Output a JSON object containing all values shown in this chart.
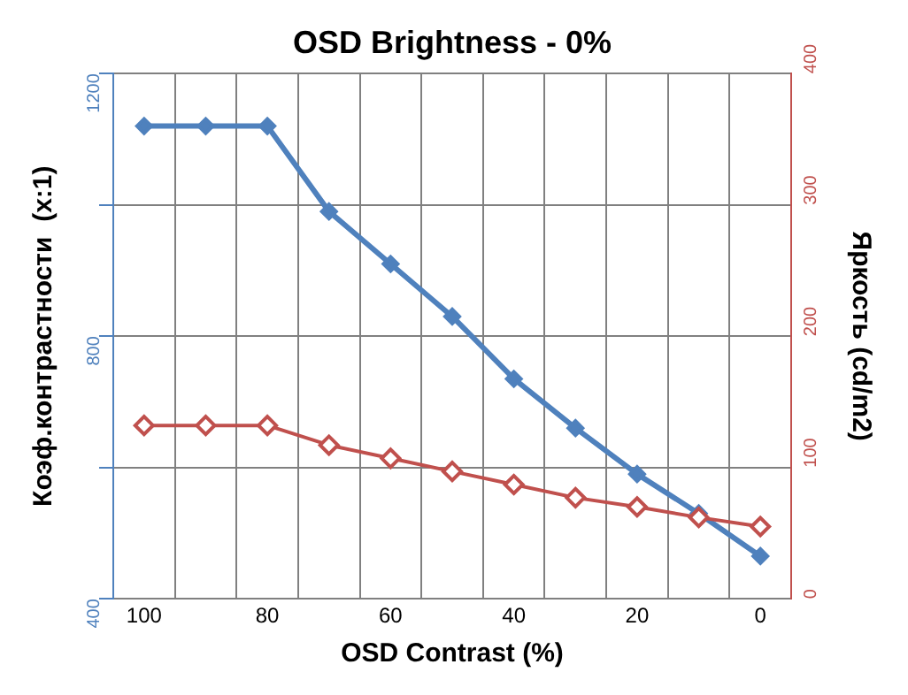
{
  "chart_data": {
    "type": "line",
    "title": "OSD Brightness - 0%",
    "xlabel": "OSD Contrast (%)",
    "ylabel": "Коэф.контрастности  (x:1)",
    "y2label": "Яркость (cd/m2)",
    "categories": [
      "100",
      null,
      "80",
      null,
      "60",
      null,
      "40",
      null,
      "20",
      null,
      "0"
    ],
    "series": [
      {
        "color": "#4f81bd",
        "values": [
          1120,
          1120,
          1120,
          990,
          910,
          830,
          735,
          660,
          590,
          530,
          465
        ]
      },
      {
        "color": "#c0504d",
        "axis": "y2",
        "values": [
          132,
          132,
          132,
          117,
          107,
          97,
          87,
          77,
          70,
          62,
          55
        ]
      }
    ],
    "ylim": [
      400,
      1200
    ],
    "yticks": [
      400,
      {
        "value": 600,
        "label": null
      },
      800,
      {
        "value": 1000,
        "label": null
      },
      1200
    ],
    "y2lim": [
      0,
      400
    ],
    "y2ticks": [
      0,
      100,
      200,
      300,
      400
    ],
    "grid": true,
    "legend": false,
    "marker": "diamond",
    "line_style": "solid"
  }
}
